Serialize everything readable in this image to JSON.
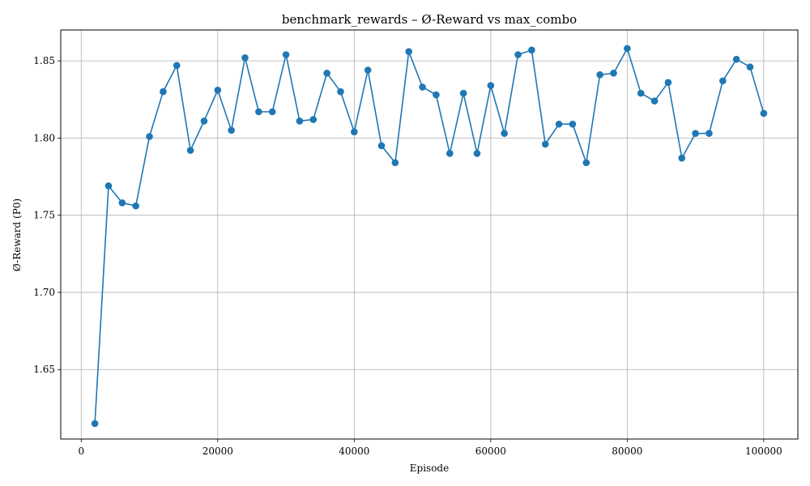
{
  "chart_data": {
    "type": "line",
    "title": "benchmark_rewards – Ø-Reward vs max_combo",
    "xlabel": "Episode",
    "ylabel": "Ø-Reward (P0)",
    "xlim": [
      -3000,
      105000
    ],
    "ylim": [
      1.605,
      1.87
    ],
    "xticks": [
      0,
      20000,
      40000,
      60000,
      80000,
      100000
    ],
    "yticks": [
      1.65,
      1.7,
      1.75,
      1.8,
      1.85
    ],
    "grid": true,
    "series": [
      {
        "color": "#1f77b4",
        "x": [
          2000,
          4000,
          6000,
          8000,
          10000,
          12000,
          14000,
          16000,
          18000,
          20000,
          22000,
          24000,
          26000,
          28000,
          30000,
          32000,
          34000,
          36000,
          38000,
          40000,
          42000,
          44000,
          46000,
          48000,
          50000,
          52000,
          54000,
          56000,
          58000,
          60000,
          62000,
          64000,
          66000,
          68000,
          70000,
          72000,
          74000,
          76000,
          78000,
          80000,
          82000,
          84000,
          86000,
          88000,
          90000,
          92000,
          94000,
          96000,
          98000,
          100000
        ],
        "y": [
          1.615,
          1.769,
          1.758,
          1.756,
          1.801,
          1.83,
          1.847,
          1.792,
          1.811,
          1.831,
          1.805,
          1.852,
          1.817,
          1.817,
          1.854,
          1.811,
          1.812,
          1.842,
          1.83,
          1.804,
          1.844,
          1.795,
          1.784,
          1.856,
          1.833,
          1.828,
          1.79,
          1.829,
          1.79,
          1.834,
          1.803,
          1.854,
          1.857,
          1.796,
          1.809,
          1.809,
          1.784,
          1.841,
          1.842,
          1.858,
          1.829,
          1.824,
          1.836,
          1.787,
          1.803,
          1.803,
          1.837,
          1.851,
          1.846,
          1.816
        ]
      }
    ]
  }
}
